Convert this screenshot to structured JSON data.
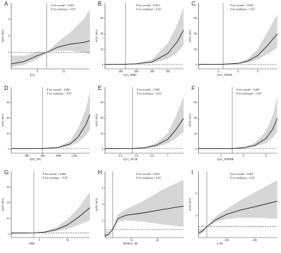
{
  "chart_data": [
    {
      "type": "line",
      "panel_label": "A",
      "annotations": [
        "P for overall < 0.001",
        "P for nonlinear < 0.05"
      ],
      "x_label": "TyG",
      "y_label": "odds ratio",
      "x": [
        6,
        7,
        8,
        8.7,
        9.5,
        10.5,
        11.5,
        12
      ],
      "values": [
        0.3,
        0.45,
        0.8,
        1.0,
        1.3,
        1.5,
        1.6,
        1.7
      ],
      "lower": [
        0.1,
        0.25,
        0.6,
        1.0,
        1.1,
        1.1,
        1.0,
        0.9
      ],
      "upper": [
        0.8,
        0.8,
        1.05,
        1.0,
        1.6,
        2.2,
        3.0,
        3.6
      ],
      "ref_x": 8.7,
      "ref_y": 1,
      "xlim": [
        6,
        12
      ],
      "xticks": [
        8,
        10
      ],
      "ylim": [
        0,
        4
      ],
      "yticks": [
        1,
        2,
        3
      ],
      "color": "#222222",
      "band_color": "#d6d6d6"
    },
    {
      "type": "line",
      "panel_label": "B",
      "annotations": [
        "P for overall < 0.001",
        "P for nonlinear < 0.05"
      ],
      "x_label": "TyG_BMI",
      "y_label": "odds ratio",
      "x": [
        100,
        200,
        230,
        300,
        400,
        500,
        560,
        600
      ],
      "values": [
        0.8,
        0.95,
        1,
        1.5,
        4,
        15,
        30,
        45
      ],
      "lower": [
        0.5,
        0.9,
        1,
        1.2,
        2.5,
        8,
        16,
        25
      ],
      "upper": [
        1.2,
        1.05,
        1,
        2,
        7,
        28,
        52,
        75
      ],
      "ref_x": 230,
      "ref_y": 1,
      "xlim": [
        100,
        600
      ],
      "xticks": [
        200,
        300,
        400,
        500
      ],
      "ylim": [
        -5,
        80
      ],
      "yticks": [
        0,
        20,
        40,
        60
      ],
      "color": "#222222",
      "band_color": "#d6d6d6"
    },
    {
      "type": "line",
      "panel_label": "C",
      "annotations": [
        "P for overall < 0.001",
        "P for nonlinear < 0.05"
      ],
      "x_label": "TyG_WHtR",
      "y_label": "odds ratio",
      "x": [
        2,
        3,
        4.5,
        6,
        7,
        8,
        9,
        10
      ],
      "values": [
        0.8,
        0.9,
        1,
        2,
        5,
        12,
        25,
        40
      ],
      "lower": [
        0.5,
        0.7,
        1,
        1.5,
        3,
        7,
        14,
        22
      ],
      "upper": [
        1.3,
        1.1,
        1,
        2.6,
        8,
        20,
        42,
        65
      ],
      "ref_x": 4.5,
      "ref_y": 1,
      "xlim": [
        2,
        10
      ],
      "xticks": [
        4,
        6,
        8
      ],
      "ylim": [
        -5,
        80
      ],
      "yticks": [
        0,
        20,
        40,
        60
      ],
      "color": "#222222",
      "band_color": "#d6d6d6"
    },
    {
      "type": "line",
      "panel_label": "D",
      "annotations": [
        "P for overall < 0.001",
        "P for nonlinear < 0.05"
      ],
      "x_label": "TyG_WC",
      "y_label": "odds ratio",
      "x": [
        400,
        600,
        800,
        1000,
        1150,
        1250,
        1350,
        1400
      ],
      "values": [
        0.8,
        0.9,
        1,
        2.5,
        7,
        16,
        32,
        45
      ],
      "lower": [
        0.5,
        0.8,
        1,
        1.8,
        4,
        9,
        18,
        25
      ],
      "upper": [
        1.3,
        1.05,
        1,
        3.5,
        11,
        27,
        52,
        75
      ],
      "ref_x": 800,
      "ref_y": 1,
      "xlim": [
        400,
        1400
      ],
      "xticks": [
        600,
        800,
        1000,
        1200
      ],
      "ylim": [
        -5,
        80
      ],
      "yticks": [
        0,
        20,
        40,
        60
      ],
      "color": "#222222",
      "band_color": "#d6d6d6"
    },
    {
      "type": "line",
      "panel_label": "E",
      "annotations": [
        "P for overall < 0.001",
        "P for nonlinear < 0.05"
      ],
      "x_label": "TyG_WCR",
      "y_label": "odds ratio",
      "x": [
        0.2,
        0.4,
        0.55,
        0.7,
        0.85,
        1.0,
        1.1,
        1.2
      ],
      "values": [
        0.8,
        0.9,
        1,
        2,
        5,
        13,
        25,
        40
      ],
      "lower": [
        0.5,
        0.8,
        1,
        1.5,
        3,
        8,
        14,
        22
      ],
      "upper": [
        1.3,
        1.05,
        1,
        2.7,
        8,
        21,
        42,
        68
      ],
      "ref_x": 0.55,
      "ref_y": 1,
      "xlim": [
        0.2,
        1.2
      ],
      "xticks": [
        0.4,
        0.6,
        0.8,
        1.0
      ],
      "ylim": [
        -5,
        80
      ],
      "yticks": [
        0,
        20,
        40,
        60
      ],
      "color": "#222222",
      "band_color": "#d6d6d6"
    },
    {
      "type": "line",
      "panel_label": "F",
      "annotations": [
        "P for overall < 0.001",
        "P for nonlinear < 0.05"
      ],
      "x_label": "TyG_WHHR",
      "y_label": "odds ratio",
      "x": [
        2,
        4,
        5,
        6,
        7,
        8,
        8.6,
        9
      ],
      "values": [
        0.8,
        0.9,
        1,
        2,
        5,
        14,
        26,
        40
      ],
      "lower": [
        0.5,
        0.8,
        1,
        1.5,
        3,
        8,
        15,
        23
      ],
      "upper": [
        1.3,
        1.05,
        1,
        2.7,
        8,
        23,
        44,
        68
      ],
      "ref_x": 5,
      "ref_y": 1,
      "xlim": [
        2,
        9
      ],
      "xticks": [
        4,
        6,
        8
      ],
      "ylim": [
        -5,
        80
      ],
      "yticks": [
        0,
        20,
        40,
        60
      ],
      "color": "#222222",
      "band_color": "#d6d6d6"
    },
    {
      "type": "line",
      "panel_label": "G",
      "annotations": [
        "P for overall < 0.001",
        "P for nonlinear < 0.05"
      ],
      "x_label": "BRI",
      "y_label": "odds ratio",
      "x": [
        0,
        2,
        4,
        6,
        8,
        10,
        12,
        14
      ],
      "values": [
        0.8,
        0.9,
        1,
        1.5,
        3,
        6,
        11,
        17
      ],
      "lower": [
        0.5,
        0.8,
        1,
        1.2,
        2,
        3.5,
        6,
        9
      ],
      "upper": [
        1.3,
        1.05,
        1,
        1.9,
        4.5,
        9.5,
        17,
        27
      ],
      "ref_x": 4,
      "ref_y": 1,
      "xlim": [
        0,
        14
      ],
      "xticks": [
        5,
        10
      ],
      "ylim": [
        -2,
        40
      ],
      "yticks": [
        0,
        10,
        20,
        30
      ],
      "color": "#222222",
      "band_color": "#d6d6d6"
    },
    {
      "type": "line",
      "panel_label": "H",
      "annotations": [
        "P for overall < 0.001",
        "P for nonlinear < 0.05"
      ],
      "x_label": "HOMA_IR",
      "y_label": "odds ratio",
      "x": [
        0,
        1.5,
        3,
        5,
        8,
        15,
        22,
        30
      ],
      "values": [
        0.2,
        0.4,
        1,
        2.3,
        2.7,
        3.0,
        3.4,
        3.8
      ],
      "lower": [
        0.05,
        0.2,
        1,
        1.9,
        2.1,
        1.9,
        1.6,
        1.3
      ],
      "upper": [
        0.6,
        0.8,
        1,
        2.8,
        3.4,
        4.5,
        5.8,
        7.0
      ],
      "ref_x": 3,
      "ref_y": 1,
      "xlim": [
        0,
        30
      ],
      "xticks": [
        10,
        20
      ],
      "ylim": [
        0,
        8
      ],
      "yticks": [
        2,
        4,
        6
      ],
      "color": "#222222",
      "band_color": "#d6d6d6"
    },
    {
      "type": "line",
      "panel_label": "I",
      "annotations": [
        "P for overall < 0.001",
        "P for nonlinear < 0.05"
      ],
      "x_label": "LAP",
      "y_label": "odds ratio",
      "x": [
        0,
        15,
        30,
        60,
        100,
        150,
        200,
        280
      ],
      "values": [
        0.4,
        0.6,
        1,
        1.6,
        2.1,
        2.5,
        2.8,
        3.3
      ],
      "lower": [
        0.2,
        0.45,
        1,
        1.4,
        1.7,
        1.8,
        1.8,
        1.7
      ],
      "upper": [
        0.8,
        0.8,
        1,
        1.9,
        2.6,
        3.4,
        4.1,
        5.2
      ],
      "ref_x": 30,
      "ref_y": 1,
      "xlim": [
        0,
        280
      ],
      "xticks": [
        100,
        200
      ],
      "ylim": [
        0,
        6
      ],
      "yticks": [
        2,
        4
      ],
      "color": "#222222",
      "band_color": "#d6d6d6"
    }
  ]
}
